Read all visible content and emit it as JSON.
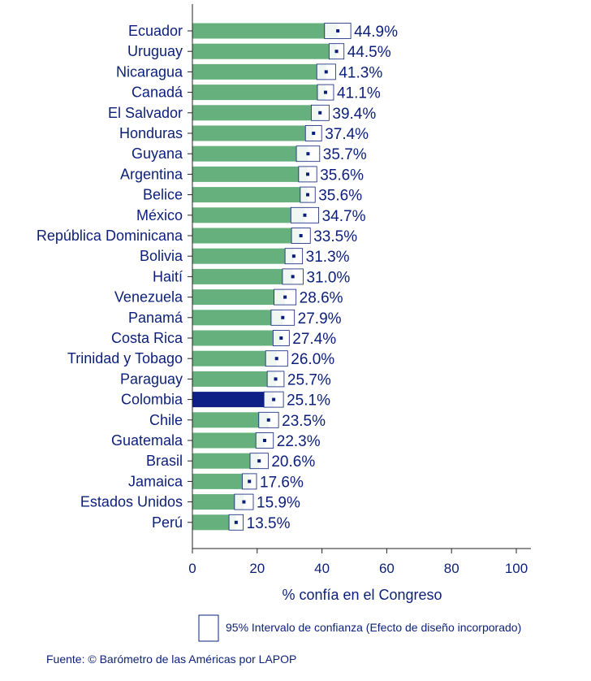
{
  "chart_data": {
    "type": "bar",
    "orientation": "horizontal",
    "xlabel": "% confía en el Congreso",
    "xlim": [
      0,
      100
    ],
    "xticks": [
      "0",
      "20",
      "40",
      "60",
      "80",
      "100"
    ],
    "categories": [
      "Ecuador",
      "Uruguay",
      "Nicaragua",
      "Canadá",
      "El Salvador",
      "Honduras",
      "Guyana",
      "Argentina",
      "Belice",
      "México",
      "República Dominicana",
      "Bolivia",
      "Haití",
      "Venezuela",
      "Panamá",
      "Costa Rica",
      "Trinidad y Tobago",
      "Paraguay",
      "Colombia",
      "Chile",
      "Guatemala",
      "Brasil",
      "Jamaica",
      "Estados Unidos",
      "Perú"
    ],
    "values": [
      44.9,
      44.5,
      41.3,
      41.1,
      39.4,
      37.4,
      35.7,
      35.6,
      35.6,
      34.7,
      33.5,
      31.3,
      31.0,
      28.6,
      27.9,
      27.4,
      26.0,
      25.7,
      25.1,
      23.5,
      22.3,
      20.6,
      17.6,
      15.9,
      13.5
    ],
    "value_labels": [
      "44.9%",
      "44.5%",
      "41.3%",
      "41.1%",
      "39.4%",
      "37.4%",
      "35.7%",
      "35.6%",
      "35.6%",
      "34.7%",
      "33.5%",
      "31.3%",
      "31.0%",
      "28.6%",
      "27.9%",
      "27.4%",
      "26.0%",
      "25.7%",
      "25.1%",
      "23.5%",
      "22.3%",
      "20.6%",
      "17.6%",
      "15.9%",
      "13.5%"
    ],
    "ci_lower": [
      40.8,
      42.2,
      38.4,
      38.6,
      36.7,
      34.9,
      32.1,
      32.8,
      33.3,
      30.4,
      30.6,
      28.6,
      27.8,
      25.2,
      24.3,
      24.9,
      22.6,
      23.1,
      22.1,
      20.5,
      19.6,
      17.8,
      15.4,
      13.0,
      11.3
    ],
    "ci_upper": [
      48.9,
      46.8,
      44.2,
      43.6,
      42.2,
      39.9,
      39.3,
      38.4,
      37.9,
      39.0,
      36.4,
      34.0,
      34.2,
      32.0,
      31.5,
      29.9,
      29.4,
      28.3,
      28.1,
      26.6,
      25.0,
      23.4,
      19.8,
      18.8,
      15.7
    ],
    "highlight": "Colombia",
    "colors": {
      "bar": "#66b07e",
      "highlight_bar": "#0e1f86",
      "text": "#0b1f7a",
      "ci_box": "#0b1f7a",
      "axis": "#222222"
    },
    "legend": {
      "ci_label": "95% Intervalo de confianza (Efecto de diseño incorporado)"
    },
    "source": "Fuente: © Barómetro de las Américas por LAPOP"
  }
}
